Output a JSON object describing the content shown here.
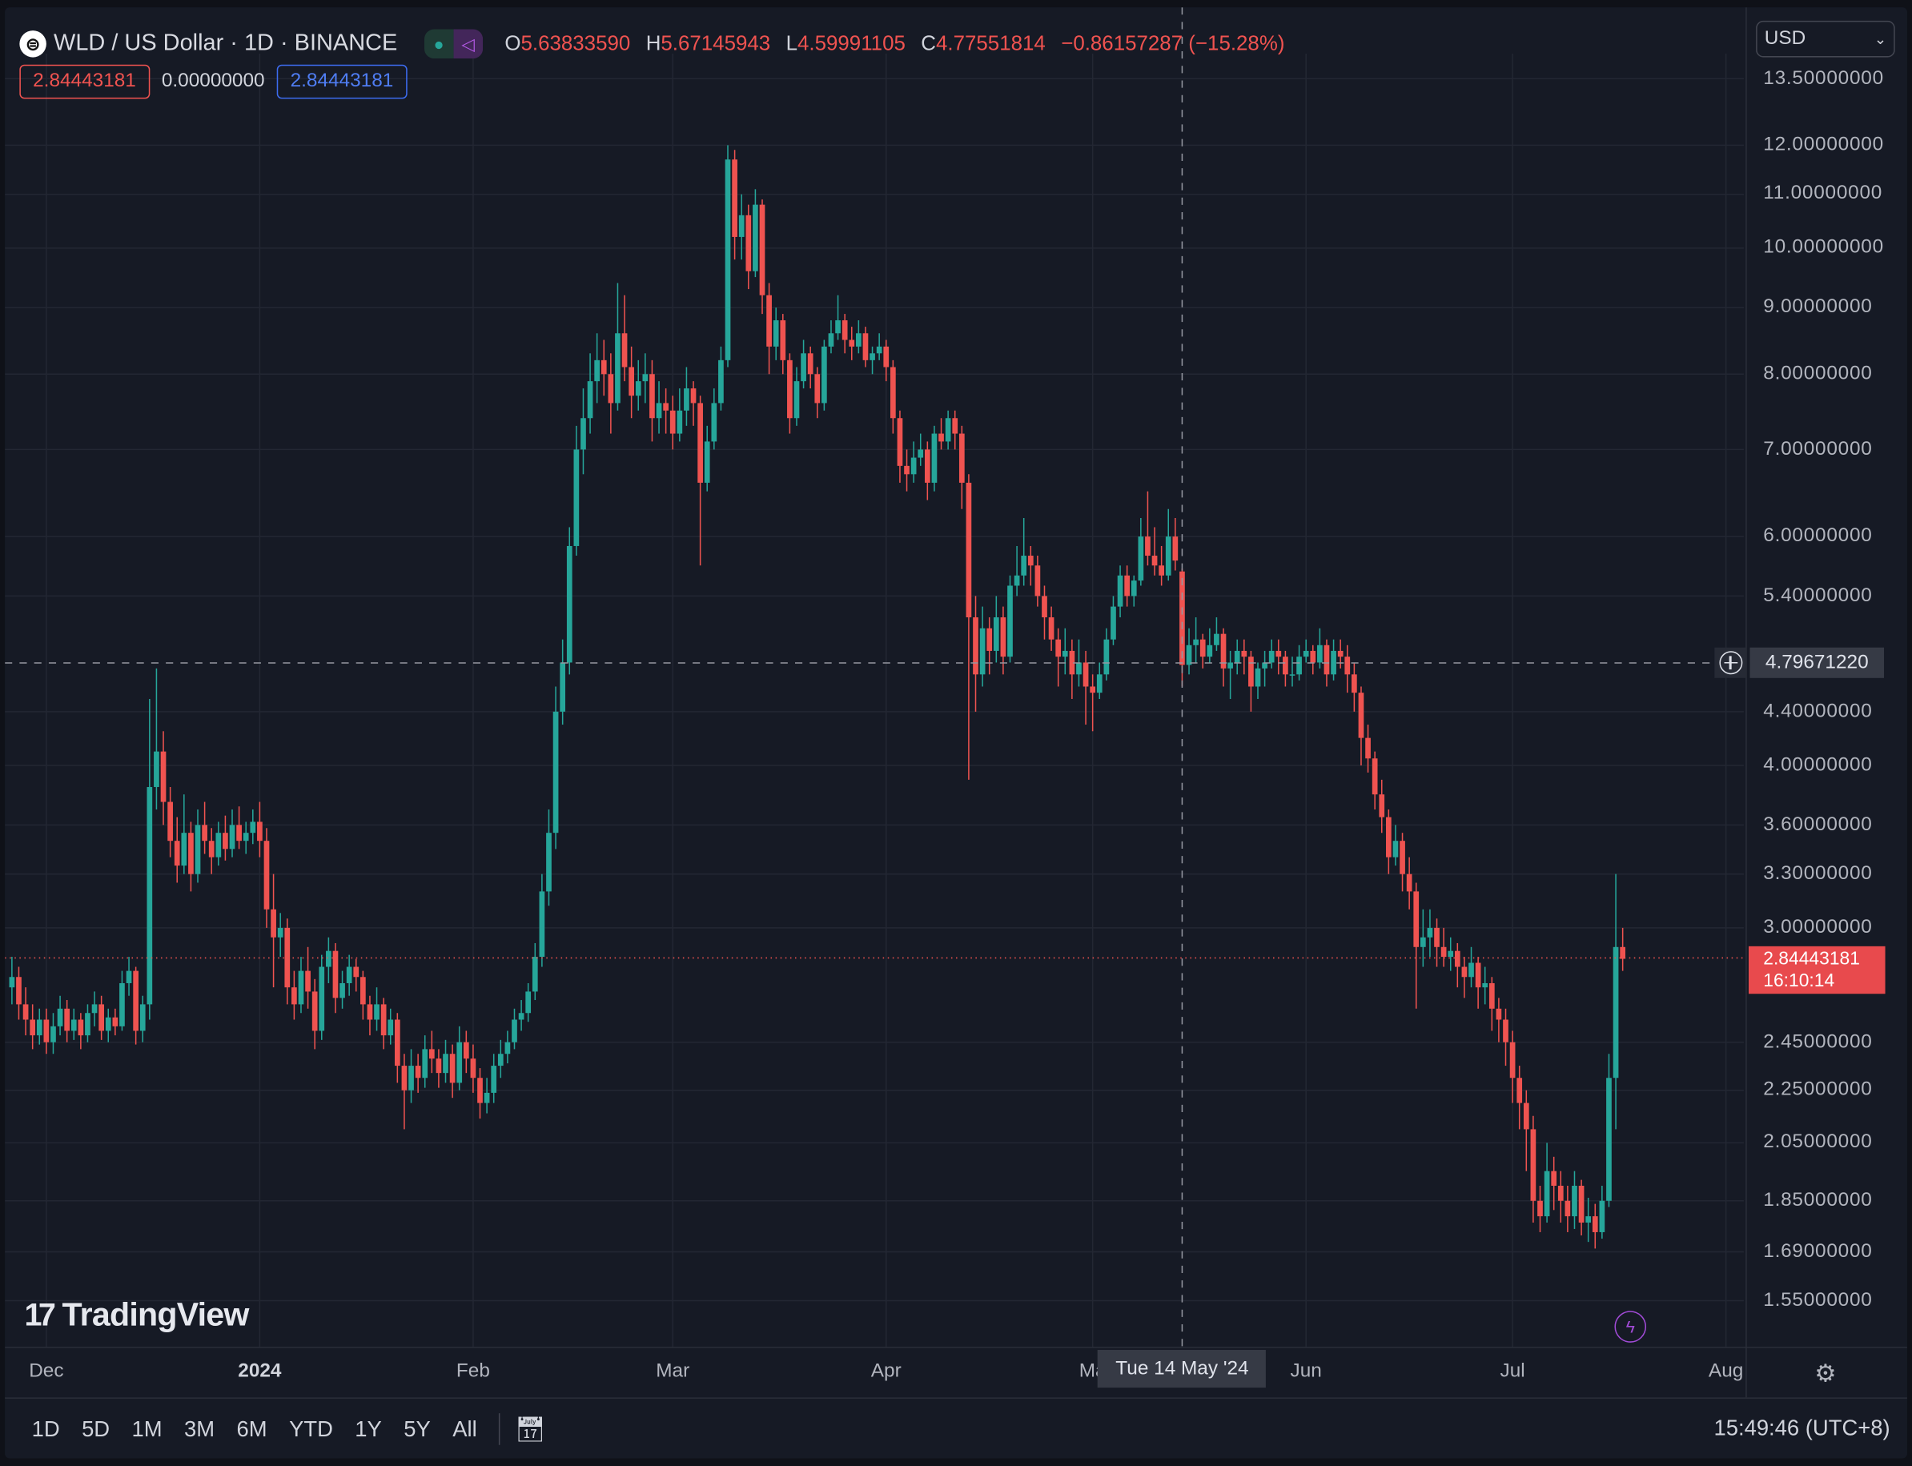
{
  "header": {
    "symbol_icon": "worldcoin-logo-icon",
    "title": "WLD / US Dollar · 1D · BINANCE",
    "ohlc": {
      "o_label": "O",
      "o": "5.63833590",
      "h_label": "H",
      "h": "5.67145943",
      "l_label": "L",
      "l": "4.59991105",
      "c_label": "C",
      "c": "4.77551814",
      "change": "−0.86157287 (−15.28%)"
    },
    "values": {
      "bid": "2.84443181",
      "spread": "0.00000000",
      "ask": "2.84443181"
    }
  },
  "currency": {
    "selected": "USD"
  },
  "colors": {
    "up": "#26a69a",
    "down": "#ef5350",
    "background": "#161a25",
    "grid": "#232733"
  },
  "price_axis": {
    "ticks": [
      "13.50000000",
      "12.00000000",
      "11.00000000",
      "10.00000000",
      "9.00000000",
      "8.00000000",
      "7.00000000",
      "6.00000000",
      "5.40000000",
      "4.40000000",
      "4.00000000",
      "3.60000000",
      "3.30000000",
      "3.00000000",
      "2.45000000",
      "2.25000000",
      "2.05000000",
      "1.85000000",
      "1.69000000",
      "1.55000000"
    ],
    "crosshair_price": "4.79671220",
    "last_price": "2.84443181",
    "countdown": "16:10:14"
  },
  "time_axis": {
    "ticks": [
      {
        "label": "Dec",
        "date": "2023-12-01"
      },
      {
        "label": "2024",
        "date": "2024-01-01",
        "bold": true
      },
      {
        "label": "Feb",
        "date": "2024-02-01"
      },
      {
        "label": "Mar",
        "date": "2024-03-01"
      },
      {
        "label": "Apr",
        "date": "2024-04-01"
      },
      {
        "label": "Ma",
        "date": "2024-05-01"
      },
      {
        "label": "Jun",
        "date": "2024-06-01"
      },
      {
        "label": "Jul",
        "date": "2024-07-01"
      },
      {
        "label": "Aug",
        "date": "2024-08-01"
      }
    ],
    "crosshair_date": "Tue 14 May '24"
  },
  "branding": {
    "logo": "TradingView"
  },
  "toolbar": {
    "ranges": [
      "1D",
      "5D",
      "1M",
      "3M",
      "6M",
      "YTD",
      "1Y",
      "5Y",
      "All"
    ],
    "clock": "15:49:46 (UTC+8)"
  },
  "chart_data": {
    "type": "candlestick",
    "scale": "log",
    "interval": "1D",
    "first_date": "2023-11-26",
    "ylim": [
      1.45,
      14.3
    ],
    "grid": true,
    "candles_ohlc": [
      [
        2.7,
        2.85,
        2.62,
        2.75
      ],
      [
        2.75,
        2.8,
        2.55,
        2.62
      ],
      [
        2.62,
        2.7,
        2.48,
        2.55
      ],
      [
        2.55,
        2.62,
        2.42,
        2.48
      ],
      [
        2.48,
        2.6,
        2.44,
        2.55
      ],
      [
        2.55,
        2.6,
        2.4,
        2.45
      ],
      [
        2.45,
        2.58,
        2.4,
        2.52
      ],
      [
        2.52,
        2.66,
        2.48,
        2.6
      ],
      [
        2.6,
        2.64,
        2.45,
        2.5
      ],
      [
        2.5,
        2.6,
        2.46,
        2.55
      ],
      [
        2.55,
        2.58,
        2.42,
        2.48
      ],
      [
        2.48,
        2.62,
        2.45,
        2.58
      ],
      [
        2.58,
        2.68,
        2.52,
        2.62
      ],
      [
        2.62,
        2.66,
        2.46,
        2.5
      ],
      [
        2.5,
        2.6,
        2.45,
        2.56
      ],
      [
        2.56,
        2.6,
        2.48,
        2.52
      ],
      [
        2.52,
        2.78,
        2.5,
        2.72
      ],
      [
        2.72,
        2.85,
        2.66,
        2.78
      ],
      [
        2.78,
        2.8,
        2.44,
        2.5
      ],
      [
        2.5,
        2.66,
        2.45,
        2.62
      ],
      [
        2.62,
        4.5,
        2.55,
        3.85
      ],
      [
        3.85,
        4.75,
        3.7,
        4.1
      ],
      [
        4.1,
        4.25,
        3.6,
        3.75
      ],
      [
        3.75,
        3.85,
        3.4,
        3.5
      ],
      [
        3.5,
        3.65,
        3.25,
        3.35
      ],
      [
        3.35,
        3.8,
        3.3,
        3.55
      ],
      [
        3.55,
        3.62,
        3.2,
        3.3
      ],
      [
        3.3,
        3.7,
        3.25,
        3.6
      ],
      [
        3.6,
        3.75,
        3.42,
        3.5
      ],
      [
        3.5,
        3.58,
        3.3,
        3.4
      ],
      [
        3.4,
        3.62,
        3.35,
        3.55
      ],
      [
        3.55,
        3.66,
        3.38,
        3.45
      ],
      [
        3.45,
        3.7,
        3.4,
        3.6
      ],
      [
        3.6,
        3.72,
        3.45,
        3.5
      ],
      [
        3.5,
        3.62,
        3.42,
        3.55
      ],
      [
        3.55,
        3.7,
        3.48,
        3.62
      ],
      [
        3.62,
        3.75,
        3.4,
        3.5
      ],
      [
        3.5,
        3.58,
        3.0,
        3.1
      ],
      [
        3.1,
        3.3,
        2.7,
        2.95
      ],
      [
        2.95,
        3.08,
        2.85,
        3.0
      ],
      [
        3.0,
        3.05,
        2.62,
        2.7
      ],
      [
        2.7,
        2.78,
        2.55,
        2.62
      ],
      [
        2.62,
        2.85,
        2.58,
        2.78
      ],
      [
        2.78,
        2.9,
        2.6,
        2.68
      ],
      [
        2.68,
        2.74,
        2.42,
        2.5
      ],
      [
        2.5,
        2.86,
        2.46,
        2.8
      ],
      [
        2.8,
        2.95,
        2.72,
        2.88
      ],
      [
        2.88,
        2.92,
        2.58,
        2.65
      ],
      [
        2.65,
        2.78,
        2.6,
        2.72
      ],
      [
        2.72,
        2.86,
        2.66,
        2.8
      ],
      [
        2.8,
        2.84,
        2.68,
        2.75
      ],
      [
        2.75,
        2.78,
        2.55,
        2.62
      ],
      [
        2.62,
        2.66,
        2.48,
        2.55
      ],
      [
        2.55,
        2.7,
        2.5,
        2.62
      ],
      [
        2.62,
        2.65,
        2.42,
        2.48
      ],
      [
        2.48,
        2.6,
        2.44,
        2.55
      ],
      [
        2.55,
        2.58,
        2.28,
        2.35
      ],
      [
        2.35,
        2.4,
        2.1,
        2.25
      ],
      [
        2.25,
        2.42,
        2.2,
        2.35
      ],
      [
        2.35,
        2.4,
        2.24,
        2.3
      ],
      [
        2.3,
        2.48,
        2.26,
        2.42
      ],
      [
        2.42,
        2.5,
        2.32,
        2.38
      ],
      [
        2.38,
        2.42,
        2.26,
        2.32
      ],
      [
        2.32,
        2.46,
        2.28,
        2.4
      ],
      [
        2.4,
        2.44,
        2.22,
        2.28
      ],
      [
        2.28,
        2.52,
        2.25,
        2.45
      ],
      [
        2.45,
        2.5,
        2.32,
        2.38
      ],
      [
        2.38,
        2.44,
        2.24,
        2.3
      ],
      [
        2.3,
        2.34,
        2.14,
        2.2
      ],
      [
        2.2,
        2.3,
        2.16,
        2.24
      ],
      [
        2.24,
        2.4,
        2.2,
        2.35
      ],
      [
        2.35,
        2.46,
        2.3,
        2.4
      ],
      [
        2.4,
        2.5,
        2.36,
        2.45
      ],
      [
        2.45,
        2.6,
        2.42,
        2.55
      ],
      [
        2.55,
        2.64,
        2.5,
        2.58
      ],
      [
        2.58,
        2.72,
        2.54,
        2.68
      ],
      [
        2.68,
        2.92,
        2.64,
        2.85
      ],
      [
        2.85,
        3.3,
        2.8,
        3.2
      ],
      [
        3.2,
        3.7,
        3.12,
        3.55
      ],
      [
        3.55,
        4.6,
        3.45,
        4.4
      ],
      [
        4.4,
        5.0,
        4.3,
        4.8
      ],
      [
        4.8,
        6.1,
        4.7,
        5.9
      ],
      [
        5.9,
        7.3,
        5.8,
        7.0
      ],
      [
        7.0,
        7.8,
        6.7,
        7.4
      ],
      [
        7.4,
        8.3,
        7.2,
        7.9
      ],
      [
        7.9,
        8.6,
        7.6,
        8.2
      ],
      [
        8.2,
        8.5,
        7.7,
        8.0
      ],
      [
        8.0,
        8.3,
        7.2,
        7.6
      ],
      [
        7.6,
        9.4,
        7.5,
        8.6
      ],
      [
        8.6,
        9.2,
        7.9,
        8.1
      ],
      [
        8.1,
        8.4,
        7.4,
        7.7
      ],
      [
        7.7,
        8.2,
        7.5,
        7.9
      ],
      [
        7.9,
        8.3,
        7.6,
        8.0
      ],
      [
        8.0,
        8.2,
        7.1,
        7.4
      ],
      [
        7.4,
        7.9,
        7.2,
        7.6
      ],
      [
        7.6,
        7.8,
        7.2,
        7.5
      ],
      [
        7.5,
        7.7,
        7.0,
        7.2
      ],
      [
        7.2,
        7.8,
        7.1,
        7.5
      ],
      [
        7.5,
        8.1,
        7.3,
        7.8
      ],
      [
        7.8,
        7.9,
        7.3,
        7.6
      ],
      [
        7.6,
        7.7,
        5.7,
        6.6
      ],
      [
        6.6,
        7.3,
        6.5,
        7.1
      ],
      [
        7.1,
        7.8,
        7.0,
        7.6
      ],
      [
        7.6,
        8.4,
        7.5,
        8.2
      ],
      [
        8.2,
        12.0,
        8.1,
        11.7
      ],
      [
        11.7,
        11.9,
        9.8,
        10.2
      ],
      [
        10.2,
        11.0,
        9.8,
        10.6
      ],
      [
        10.6,
        10.8,
        9.3,
        9.6
      ],
      [
        9.6,
        11.1,
        9.5,
        10.8
      ],
      [
        10.8,
        10.9,
        8.9,
        9.2
      ],
      [
        9.2,
        9.4,
        8.0,
        8.4
      ],
      [
        8.4,
        9.0,
        8.2,
        8.8
      ],
      [
        8.8,
        8.9,
        8.0,
        8.2
      ],
      [
        8.2,
        8.3,
        7.2,
        7.4
      ],
      [
        7.4,
        8.1,
        7.3,
        7.9
      ],
      [
        7.9,
        8.5,
        7.8,
        8.3
      ],
      [
        8.3,
        8.4,
        7.8,
        8.0
      ],
      [
        8.0,
        8.1,
        7.4,
        7.6
      ],
      [
        7.6,
        8.5,
        7.5,
        8.4
      ],
      [
        8.4,
        8.8,
        8.3,
        8.6
      ],
      [
        8.6,
        9.2,
        8.5,
        8.8
      ],
      [
        8.8,
        8.9,
        8.3,
        8.5
      ],
      [
        8.5,
        8.7,
        8.2,
        8.4
      ],
      [
        8.4,
        8.8,
        8.3,
        8.6
      ],
      [
        8.6,
        8.7,
        8.1,
        8.2
      ],
      [
        8.2,
        8.4,
        8.0,
        8.3
      ],
      [
        8.3,
        8.6,
        8.2,
        8.4
      ],
      [
        8.4,
        8.5,
        7.9,
        8.1
      ],
      [
        8.1,
        8.2,
        7.2,
        7.4
      ],
      [
        7.4,
        7.5,
        6.6,
        6.8
      ],
      [
        6.8,
        7.0,
        6.5,
        6.7
      ],
      [
        6.7,
        7.1,
        6.6,
        6.9
      ],
      [
        6.9,
        7.2,
        6.8,
        7.0
      ],
      [
        7.0,
        7.1,
        6.4,
        6.6
      ],
      [
        6.6,
        7.3,
        6.5,
        7.2
      ],
      [
        7.2,
        7.4,
        7.0,
        7.1
      ],
      [
        7.1,
        7.5,
        7.0,
        7.4
      ],
      [
        7.4,
        7.5,
        7.0,
        7.2
      ],
      [
        7.2,
        7.3,
        6.3,
        6.6
      ],
      [
        6.6,
        6.7,
        3.9,
        5.2
      ],
      [
        5.2,
        5.4,
        4.4,
        4.7
      ],
      [
        4.7,
        5.3,
        4.6,
        5.1
      ],
      [
        5.1,
        5.2,
        4.7,
        4.9
      ],
      [
        4.9,
        5.4,
        4.8,
        5.2
      ],
      [
        5.2,
        5.3,
        4.7,
        4.85
      ],
      [
        4.85,
        5.6,
        4.8,
        5.5
      ],
      [
        5.5,
        5.9,
        5.4,
        5.6
      ],
      [
        5.6,
        6.2,
        5.5,
        5.8
      ],
      [
        5.8,
        5.9,
        5.5,
        5.7
      ],
      [
        5.7,
        5.8,
        5.3,
        5.4
      ],
      [
        5.4,
        5.5,
        5.0,
        5.2
      ],
      [
        5.2,
        5.3,
        4.9,
        5.0
      ],
      [
        5.0,
        5.1,
        4.6,
        4.85
      ],
      [
        4.85,
        5.1,
        4.7,
        4.9
      ],
      [
        4.9,
        5.0,
        4.5,
        4.7
      ],
      [
        4.7,
        5.0,
        4.6,
        4.8
      ],
      [
        4.8,
        4.9,
        4.3,
        4.6
      ],
      [
        4.6,
        4.7,
        4.25,
        4.55
      ],
      [
        4.55,
        4.8,
        4.5,
        4.7
      ],
      [
        4.7,
        5.1,
        4.65,
        5.0
      ],
      [
        5.0,
        5.4,
        4.95,
        5.3
      ],
      [
        5.3,
        5.7,
        5.2,
        5.6
      ],
      [
        5.6,
        5.7,
        5.3,
        5.4
      ],
      [
        5.4,
        5.6,
        5.3,
        5.55
      ],
      [
        5.55,
        6.2,
        5.5,
        6.0
      ],
      [
        6.0,
        6.5,
        5.7,
        5.8
      ],
      [
        5.8,
        6.1,
        5.6,
        5.7
      ],
      [
        5.7,
        5.9,
        5.5,
        5.6
      ],
      [
        5.6,
        6.3,
        5.55,
        6.0
      ],
      [
        6.0,
        6.2,
        5.65,
        5.75
      ],
      [
        5.64,
        5.67,
        4.6,
        4.78
      ],
      [
        4.78,
        5.1,
        4.7,
        4.95
      ],
      [
        4.95,
        5.2,
        4.8,
        5.0
      ],
      [
        5.0,
        5.05,
        4.75,
        4.85
      ],
      [
        4.85,
        5.1,
        4.8,
        4.95
      ],
      [
        4.95,
        5.2,
        4.9,
        5.05
      ],
      [
        5.05,
        5.1,
        4.6,
        4.75
      ],
      [
        4.75,
        4.9,
        4.5,
        4.8
      ],
      [
        4.8,
        5.0,
        4.7,
        4.9
      ],
      [
        4.9,
        5.0,
        4.7,
        4.85
      ],
      [
        4.85,
        4.9,
        4.4,
        4.6
      ],
      [
        4.6,
        4.8,
        4.5,
        4.75
      ],
      [
        4.75,
        4.9,
        4.6,
        4.8
      ],
      [
        4.8,
        5.0,
        4.75,
        4.9
      ],
      [
        4.9,
        5.0,
        4.7,
        4.85
      ],
      [
        4.85,
        4.9,
        4.6,
        4.7
      ],
      [
        4.7,
        4.85,
        4.6,
        4.7
      ],
      [
        4.7,
        4.95,
        4.65,
        4.85
      ],
      [
        4.85,
        5.0,
        4.8,
        4.9
      ],
      [
        4.9,
        4.95,
        4.7,
        4.8
      ],
      [
        4.8,
        5.1,
        4.75,
        4.95
      ],
      [
        4.95,
        5.0,
        4.6,
        4.7
      ],
      [
        4.7,
        5.0,
        4.65,
        4.9
      ],
      [
        4.9,
        5.0,
        4.75,
        4.85
      ],
      [
        4.85,
        4.95,
        4.55,
        4.7
      ],
      [
        4.7,
        4.8,
        4.4,
        4.55
      ],
      [
        4.55,
        4.6,
        4.0,
        4.2
      ],
      [
        4.2,
        4.3,
        3.95,
        4.05
      ],
      [
        4.05,
        4.1,
        3.7,
        3.8
      ],
      [
        3.8,
        3.9,
        3.55,
        3.65
      ],
      [
        3.65,
        3.7,
        3.3,
        3.4
      ],
      [
        3.4,
        3.6,
        3.35,
        3.5
      ],
      [
        3.5,
        3.55,
        3.2,
        3.3
      ],
      [
        3.3,
        3.4,
        3.1,
        3.2
      ],
      [
        3.2,
        3.25,
        2.6,
        2.9
      ],
      [
        2.9,
        3.1,
        2.8,
        2.95
      ],
      [
        2.95,
        3.1,
        2.85,
        3.0
      ],
      [
        3.0,
        3.05,
        2.8,
        2.9
      ],
      [
        2.9,
        3.0,
        2.8,
        2.85
      ],
      [
        2.85,
        2.95,
        2.78,
        2.88
      ],
      [
        2.88,
        2.92,
        2.7,
        2.8
      ],
      [
        2.8,
        2.85,
        2.65,
        2.75
      ],
      [
        2.75,
        2.9,
        2.7,
        2.82
      ],
      [
        2.82,
        2.85,
        2.6,
        2.7
      ],
      [
        2.7,
        2.8,
        2.62,
        2.72
      ],
      [
        2.72,
        2.75,
        2.5,
        2.6
      ],
      [
        2.6,
        2.65,
        2.45,
        2.55
      ],
      [
        2.55,
        2.6,
        2.35,
        2.45
      ],
      [
        2.45,
        2.5,
        2.2,
        2.3
      ],
      [
        2.3,
        2.35,
        2.1,
        2.2
      ],
      [
        2.2,
        2.25,
        1.95,
        2.1
      ],
      [
        2.1,
        2.15,
        1.78,
        1.85
      ],
      [
        1.85,
        1.9,
        1.75,
        1.8
      ],
      [
        1.8,
        2.05,
        1.78,
        1.95
      ],
      [
        1.95,
        2.0,
        1.82,
        1.9
      ],
      [
        1.9,
        1.95,
        1.78,
        1.85
      ],
      [
        1.85,
        1.9,
        1.75,
        1.8
      ],
      [
        1.8,
        1.95,
        1.76,
        1.9
      ],
      [
        1.9,
        1.92,
        1.74,
        1.78
      ],
      [
        1.78,
        1.86,
        1.72,
        1.8
      ],
      [
        1.8,
        1.84,
        1.7,
        1.75
      ],
      [
        1.75,
        1.9,
        1.73,
        1.85
      ],
      [
        1.85,
        2.4,
        1.83,
        2.3
      ],
      [
        2.3,
        3.3,
        2.1,
        2.9
      ],
      [
        2.9,
        3.0,
        2.78,
        2.84
      ]
    ]
  }
}
